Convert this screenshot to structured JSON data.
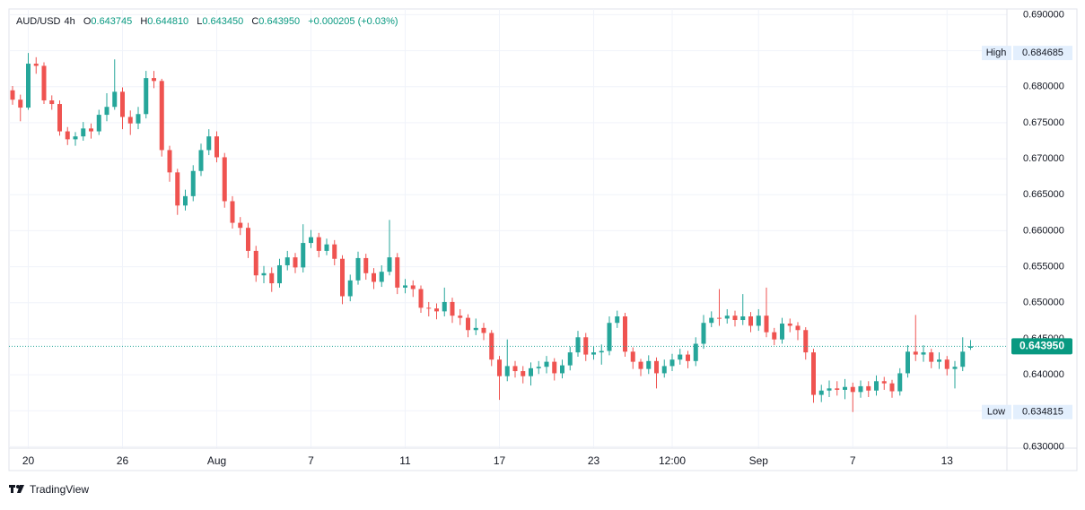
{
  "header": {
    "symbol": "AUD/USD",
    "interval": "4h",
    "open_label": "O",
    "open": "0.643745",
    "high_label": "H",
    "high": "0.644810",
    "low_label": "L",
    "low": "0.643450",
    "close_label": "C",
    "close": "0.643950",
    "change": "+0.000205 (+0.03%)"
  },
  "footer": {
    "brand": "TradingView"
  },
  "chart_data": {
    "type": "candlestick",
    "up_color": "#26a69a",
    "down_color": "#ef5350",
    "grid": true,
    "ylim": [
      0.6298,
      0.6908
    ],
    "yticks": [
      {
        "value": 0.69,
        "label": "0.690000"
      },
      {
        "value": 0.685,
        "label": "0.685000"
      },
      {
        "value": 0.68,
        "label": "0.680000"
      },
      {
        "value": 0.675,
        "label": "0.675000"
      },
      {
        "value": 0.67,
        "label": "0.670000"
      },
      {
        "value": 0.665,
        "label": "0.665000"
      },
      {
        "value": 0.66,
        "label": "0.660000"
      },
      {
        "value": 0.655,
        "label": "0.655000"
      },
      {
        "value": 0.65,
        "label": "0.650000"
      },
      {
        "value": 0.645,
        "label": "0.645000"
      },
      {
        "value": 0.64,
        "label": "0.640000"
      },
      {
        "value": 0.635,
        "label": "0.635000"
      },
      {
        "value": 0.63,
        "label": "0.630000"
      }
    ],
    "high_marker": {
      "label": "High",
      "value": 0.684685,
      "value_label": "0.684685"
    },
    "low_marker": {
      "label": "Low",
      "value": 0.634815,
      "value_label": "0.634815"
    },
    "last_price": {
      "value": 0.64395,
      "label": "0.643950"
    },
    "categories": [
      null,
      null,
      "20",
      null,
      null,
      null,
      null,
      null,
      null,
      null,
      null,
      null,
      null,
      null,
      "26",
      null,
      null,
      null,
      null,
      null,
      null,
      null,
      null,
      null,
      null,
      null,
      "Aug",
      null,
      null,
      null,
      null,
      null,
      null,
      null,
      null,
      null,
      null,
      null,
      "7",
      null,
      null,
      null,
      null,
      null,
      null,
      null,
      null,
      null,
      null,
      null,
      "11",
      null,
      null,
      null,
      null,
      null,
      null,
      null,
      null,
      null,
      null,
      null,
      "17",
      null,
      null,
      null,
      null,
      null,
      null,
      null,
      null,
      null,
      null,
      null,
      "23",
      null,
      null,
      null,
      null,
      null,
      null,
      null,
      null,
      null,
      "12:00",
      null,
      null,
      null,
      null,
      null,
      null,
      null,
      null,
      null,
      null,
      "Sep",
      null,
      null,
      null,
      null,
      null,
      null,
      null,
      null,
      null,
      null,
      null,
      "7",
      null,
      null,
      null,
      null,
      null,
      null,
      null,
      null,
      null,
      null,
      null,
      "13",
      null,
      null,
      null
    ],
    "open": [
      0.6795,
      0.6782,
      0.6771,
      0.6832,
      0.6829,
      0.6781,
      0.6776,
      0.6738,
      0.6727,
      0.6731,
      0.6742,
      0.6738,
      0.6761,
      0.6772,
      0.6793,
      0.6758,
      0.6749,
      0.6762,
      0.6812,
      0.6808,
      0.6712,
      0.6681,
      0.6635,
      0.6648,
      0.6683,
      0.6712,
      0.6731,
      0.6702,
      0.6641,
      0.6611,
      0.6604,
      0.6572,
      0.6538,
      0.6541,
      0.6527,
      0.6552,
      0.6563,
      0.6549,
      0.6583,
      0.6591,
      0.6572,
      0.6581,
      0.6561,
      0.6509,
      0.6531,
      0.6562,
      0.6541,
      0.6529,
      0.6543,
      0.6563,
      0.6521,
      0.6524,
      0.6519,
      0.6493,
      0.6492,
      0.6488,
      0.6501,
      0.6482,
      0.6479,
      0.6462,
      0.6465,
      0.6458,
      0.6421,
      0.6398,
      0.6412,
      0.6405,
      0.6398,
      0.6409,
      0.6411,
      0.6418,
      0.6402,
      0.6413,
      0.6431,
      0.6452,
      0.6428,
      0.6431,
      0.6433,
      0.6472,
      0.6481,
      0.6432,
      0.6418,
      0.6408,
      0.6419,
      0.6402,
      0.6412,
      0.6421,
      0.6428,
      0.6419,
      0.6443,
      0.6472,
      0.6479,
      0.6478,
      0.6482,
      0.6476,
      0.6481,
      0.6468,
      0.6482,
      0.6459,
      0.6449,
      0.6471,
      0.6468,
      0.6462,
      0.6431,
      0.6372,
      0.6378,
      0.6381,
      0.6379,
      0.6383,
      0.6376,
      0.6384,
      0.6378,
      0.6391,
      0.6388,
      0.6377,
      0.6402,
      0.6432,
      0.6428,
      0.6431,
      0.6418,
      0.6421,
      0.6408,
      0.6411,
      0.643745
    ],
    "high": [
      0.6801,
      0.6789,
      0.684685,
      0.6841,
      0.6834,
      0.6788,
      0.6781,
      0.6744,
      0.6737,
      0.6751,
      0.6749,
      0.6768,
      0.6791,
      0.6838,
      0.6799,
      0.6767,
      0.6772,
      0.6822,
      0.6822,
      0.6811,
      0.6718,
      0.6686,
      0.6657,
      0.6691,
      0.6721,
      0.6741,
      0.6738,
      0.6708,
      0.6648,
      0.6619,
      0.6611,
      0.6579,
      0.6551,
      0.6549,
      0.6561,
      0.6572,
      0.6569,
      0.6609,
      0.6601,
      0.6597,
      0.6589,
      0.6587,
      0.6566,
      0.6539,
      0.6571,
      0.6568,
      0.6548,
      0.6552,
      0.6615,
      0.6569,
      0.6533,
      0.6531,
      0.6524,
      0.6501,
      0.6499,
      0.6521,
      0.6507,
      0.6491,
      0.6484,
      0.6478,
      0.6472,
      0.6462,
      0.6426,
      0.6449,
      0.6419,
      0.6412,
      0.6417,
      0.6419,
      0.6426,
      0.6423,
      0.6421,
      0.6439,
      0.6461,
      0.6458,
      0.6439,
      0.6442,
      0.6481,
      0.6489,
      0.6486,
      0.6438,
      0.6422,
      0.6427,
      0.6424,
      0.6421,
      0.6429,
      0.6436,
      0.6433,
      0.6452,
      0.6483,
      0.6488,
      0.6519,
      0.6491,
      0.6489,
      0.6512,
      0.6487,
      0.6491,
      0.6521,
      0.6465,
      0.6479,
      0.6478,
      0.6473,
      0.6466,
      0.6436,
      0.6386,
      0.6392,
      0.6391,
      0.6394,
      0.6389,
      0.6392,
      0.6391,
      0.6399,
      0.6397,
      0.6393,
      0.6409,
      0.6441,
      0.6483,
      0.6441,
      0.6436,
      0.6431,
      0.6426,
      0.6419,
      0.6452,
      0.64481
    ],
    "low": [
      0.6775,
      0.6752,
      0.6768,
      0.6818,
      0.6776,
      0.6768,
      0.6732,
      0.6719,
      0.6718,
      0.6725,
      0.6728,
      0.6733,
      0.6752,
      0.6768,
      0.6741,
      0.6733,
      0.6741,
      0.6756,
      0.6798,
      0.6703,
      0.6668,
      0.6622,
      0.6628,
      0.6641,
      0.6676,
      0.6705,
      0.6695,
      0.6632,
      0.6603,
      0.6594,
      0.6562,
      0.6529,
      0.6527,
      0.6515,
      0.6521,
      0.6545,
      0.6541,
      0.6542,
      0.6576,
      0.6563,
      0.6566,
      0.6552,
      0.6498,
      0.6502,
      0.6525,
      0.6532,
      0.6519,
      0.6522,
      0.6538,
      0.6512,
      0.6513,
      0.6508,
      0.6486,
      0.6481,
      0.6477,
      0.6481,
      0.6472,
      0.6469,
      0.6452,
      0.6455,
      0.6448,
      0.6412,
      0.6365,
      0.6391,
      0.6396,
      0.6388,
      0.6385,
      0.6401,
      0.6402,
      0.6392,
      0.6395,
      0.6406,
      0.6425,
      0.6419,
      0.6421,
      0.6414,
      0.6427,
      0.6465,
      0.6425,
      0.6408,
      0.6398,
      0.6401,
      0.6381,
      0.6396,
      0.6405,
      0.6414,
      0.6409,
      0.6412,
      0.6436,
      0.6466,
      0.6468,
      0.6471,
      0.6467,
      0.6469,
      0.6459,
      0.6461,
      0.6452,
      0.6441,
      0.6443,
      0.6459,
      0.6448,
      0.6421,
      0.6361,
      0.6362,
      0.6369,
      0.6371,
      0.6366,
      0.634815,
      0.6368,
      0.6369,
      0.6371,
      0.6379,
      0.6368,
      0.6371,
      0.6396,
      0.6419,
      0.6418,
      0.6409,
      0.6408,
      0.6399,
      0.6381,
      0.6405,
      0.64345
    ],
    "close": [
      0.6782,
      0.6771,
      0.6832,
      0.6829,
      0.6781,
      0.6776,
      0.6738,
      0.6727,
      0.6731,
      0.6742,
      0.6738,
      0.6761,
      0.6772,
      0.6793,
      0.6758,
      0.6749,
      0.6762,
      0.6812,
      0.6808,
      0.6712,
      0.6681,
      0.6635,
      0.6648,
      0.6683,
      0.6712,
      0.6731,
      0.6702,
      0.6641,
      0.6611,
      0.6604,
      0.6572,
      0.6538,
      0.6541,
      0.6527,
      0.6552,
      0.6563,
      0.6549,
      0.6583,
      0.6591,
      0.6572,
      0.6581,
      0.6561,
      0.6509,
      0.6531,
      0.6562,
      0.6541,
      0.6529,
      0.6543,
      0.6563,
      0.6521,
      0.6524,
      0.6519,
      0.6493,
      0.6492,
      0.6488,
      0.6501,
      0.6482,
      0.6479,
      0.6462,
      0.6465,
      0.6458,
      0.6421,
      0.6398,
      0.6412,
      0.6405,
      0.6398,
      0.6409,
      0.6411,
      0.6418,
      0.6402,
      0.6413,
      0.6431,
      0.6452,
      0.6428,
      0.6431,
      0.6433,
      0.6472,
      0.6481,
      0.6432,
      0.6418,
      0.6408,
      0.6419,
      0.6402,
      0.6412,
      0.6421,
      0.6428,
      0.6419,
      0.6443,
      0.6472,
      0.6479,
      0.6478,
      0.6482,
      0.6476,
      0.6481,
      0.6468,
      0.6482,
      0.6459,
      0.6449,
      0.6471,
      0.6468,
      0.6462,
      0.6431,
      0.6372,
      0.6378,
      0.6381,
      0.6379,
      0.6383,
      0.6376,
      0.6384,
      0.6378,
      0.6391,
      0.6388,
      0.6377,
      0.6402,
      0.6432,
      0.6428,
      0.6431,
      0.6418,
      0.6421,
      0.6408,
      0.6411,
      0.6432,
      0.64395
    ]
  }
}
